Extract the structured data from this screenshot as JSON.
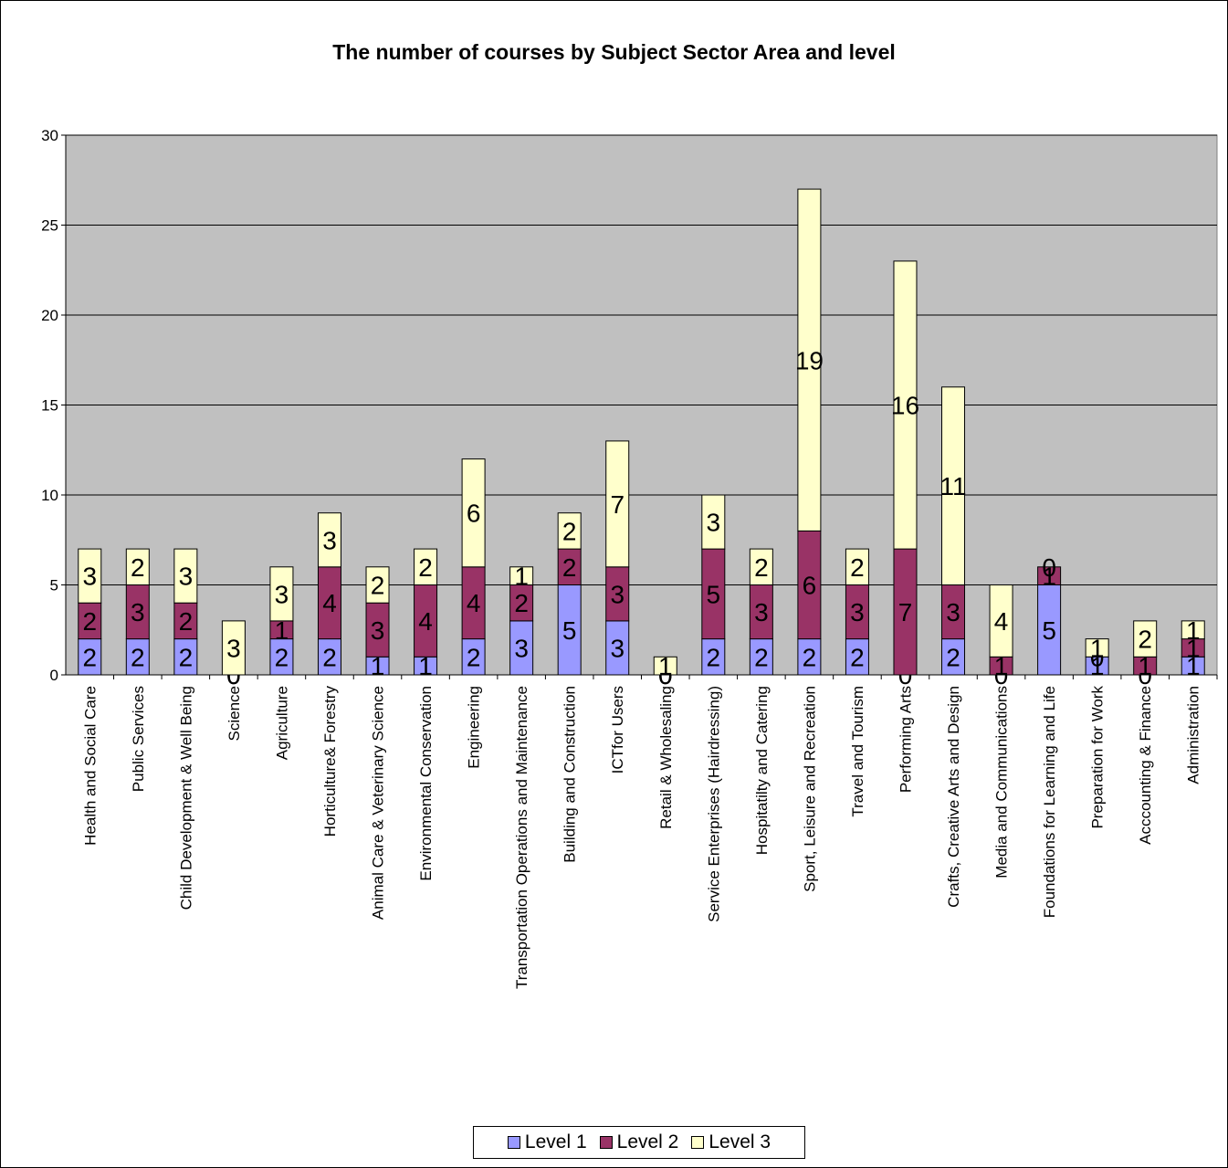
{
  "chart_data": {
    "type": "bar",
    "stacked": true,
    "title": "The number of courses by Subject Sector Area and level",
    "xlabel": "",
    "ylabel": "",
    "ylim": [
      0,
      30
    ],
    "yticks": [
      "0",
      "5",
      "10",
      "15",
      "20",
      "25",
      "30"
    ],
    "grid": true,
    "legend_position": "bottom",
    "plot_background": "#c0c0c0",
    "categories": [
      "Health and Social Care",
      "Public Services",
      "Child Development & Well Being",
      "Science",
      "Agriculture",
      "Horticulture& Forestry",
      "Animal Care & Veterinary Science",
      "Environmental Conservation",
      "Engineering",
      "Transportation Operations and Maintenance",
      "Building and Construction",
      "ICTfor Users",
      "Retail & Wholesaling",
      "Service Enterprises (Hairdressing)",
      "Hospitatilty and Catering",
      "Sport, Leisure and Recreation",
      "Travel and Tourism",
      "Performing Arts",
      "Crafts, Creative Arts and Design",
      "Media and Communications",
      "Foundations for Learning and Life",
      "Preparation for Work",
      "Acccounting & Finance",
      "Administration"
    ],
    "series": [
      {
        "name": "Level 1",
        "color": "#9999ff",
        "values": [
          2,
          2,
          2,
          0,
          2,
          2,
          1,
          1,
          2,
          3,
          5,
          3,
          0,
          2,
          2,
          2,
          2,
          0,
          2,
          0,
          5,
          1,
          0,
          1
        ]
      },
      {
        "name": "Level 2",
        "color": "#993366",
        "values": [
          2,
          3,
          2,
          0,
          1,
          4,
          3,
          4,
          4,
          2,
          2,
          3,
          0,
          5,
          3,
          6,
          3,
          7,
          3,
          1,
          1,
          0,
          1,
          1
        ]
      },
      {
        "name": "Level 3",
        "color": "#ffffcc",
        "values": [
          3,
          2,
          3,
          3,
          3,
          3,
          2,
          2,
          6,
          1,
          2,
          7,
          1,
          3,
          2,
          19,
          2,
          16,
          11,
          4,
          0,
          1,
          2,
          1
        ]
      }
    ]
  }
}
